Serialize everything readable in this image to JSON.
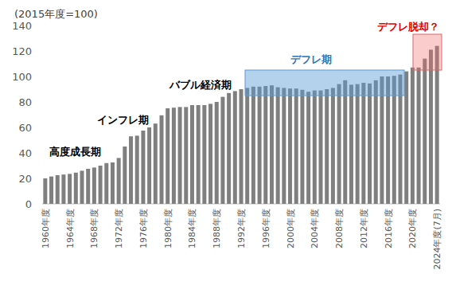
{
  "chart_data": {
    "type": "bar",
    "y_label": "(2015年度=100)",
    "categories": [
      "1960年度",
      null,
      null,
      null,
      "1964年度",
      null,
      null,
      null,
      "1968年度",
      null,
      null,
      null,
      "1972年度",
      null,
      null,
      null,
      "1976年度",
      null,
      null,
      null,
      "1980年度",
      null,
      null,
      null,
      "1984年度",
      null,
      null,
      null,
      "1988年度",
      null,
      null,
      null,
      "1992年度",
      null,
      null,
      null,
      "1996年度",
      null,
      null,
      null,
      "2000年度",
      null,
      null,
      null,
      "2004年度",
      null,
      null,
      null,
      "2008年度",
      null,
      null,
      null,
      "2012年度",
      null,
      null,
      null,
      "2016年度",
      null,
      null,
      null,
      "2020年度",
      null,
      null,
      null,
      "2024年度(7月)"
    ],
    "values": [
      20,
      21.5,
      22.5,
      23,
      23.5,
      24.5,
      26,
      27.5,
      28.5,
      30,
      32,
      32.5,
      36,
      45,
      53,
      53.5,
      57.5,
      60,
      63,
      69.5,
      75,
      75.5,
      76,
      76,
      77.5,
      77.5,
      77.5,
      78.5,
      80,
      84,
      87,
      88.5,
      90,
      91,
      92,
      92,
      92.5,
      93,
      91.5,
      91,
      90.5,
      90.5,
      89.5,
      88,
      89,
      89,
      90,
      91,
      94,
      97,
      93.5,
      94,
      95,
      94.5,
      97,
      100,
      100,
      100.5,
      101.5,
      104,
      107,
      107,
      114,
      121,
      124
    ],
    "color": "#7f7f7f",
    "annotations": [
      "高度成長期",
      "インフレ期",
      "バブル経済期",
      "デフレ期",
      "デフレ脱却？"
    ],
    "ylim": [
      0,
      140
    ],
    "yticks": [
      0,
      20,
      40,
      60,
      80,
      100,
      120,
      140
    ],
    "grid": false
  }
}
